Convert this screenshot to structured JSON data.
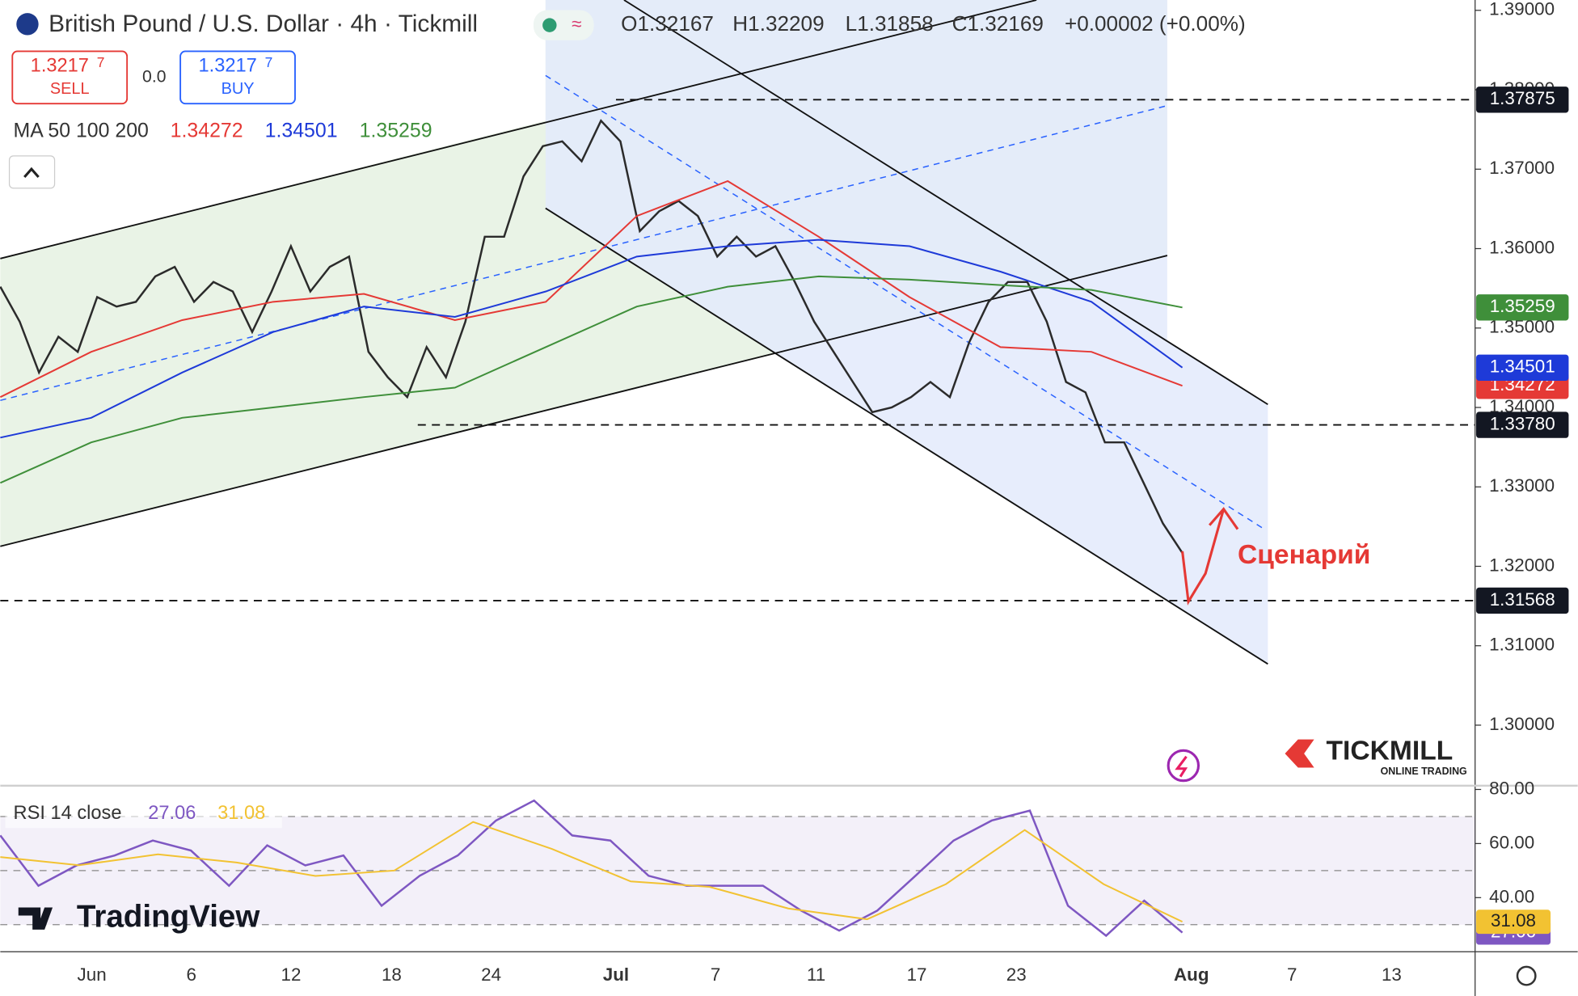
{
  "header": {
    "symbol": "British Pound / U.S. Dollar · 4h · Tickmill",
    "open": "O1.32167",
    "high": "H1.32209",
    "low": "L1.31858",
    "close": "C1.32169",
    "change": "+0.00002 (+0.00%)"
  },
  "trade": {
    "sell_price": "1.3217",
    "sell_pip": "7",
    "sell": "SELL",
    "spread": "0.0",
    "buy_price": "1.3217",
    "buy_pip": "7",
    "buy": "BUY"
  },
  "chart_data": {
    "type": "line",
    "indicator_label": "MA 50 100 200",
    "x_labels": [
      "Jun",
      "6",
      "12",
      "18",
      "24",
      "Jul",
      "7",
      "11",
      "17",
      "23",
      "Aug",
      "7",
      "13"
    ],
    "ylim": [
      1.2925,
      1.3913
    ],
    "yticks": [
      {
        "value": 1.39,
        "label": "1.39000"
      },
      {
        "value": 1.38,
        "label": "1.38000"
      },
      {
        "value": 1.37,
        "label": "1.37000"
      },
      {
        "value": 1.36,
        "label": "1.36000"
      },
      {
        "value": 1.35,
        "label": "1.35000"
      },
      {
        "value": 1.34,
        "label": "1.34000"
      },
      {
        "value": 1.33,
        "label": "1.33000"
      },
      {
        "value": 1.32,
        "label": "1.32000"
      },
      {
        "value": 1.31,
        "label": "1.31000"
      },
      {
        "value": 1.3,
        "label": "1.30000"
      }
    ],
    "series": [
      {
        "color": "#2b2b2b",
        "values": [
          1.3552,
          1.3508,
          1.3444,
          1.3489,
          1.347,
          1.3539,
          1.3527,
          1.3533,
          1.3565,
          1.3577,
          1.3533,
          1.3558,
          1.3546,
          1.3495,
          1.3546,
          1.3603,
          1.3546,
          1.3577,
          1.359,
          1.347,
          1.3438,
          1.3413,
          1.3476,
          1.3438,
          1.3508,
          1.3615,
          1.3615,
          1.3691,
          1.3729,
          1.3735,
          1.371,
          1.3761,
          1.3735,
          1.3622,
          1.3647,
          1.366,
          1.3641,
          1.359,
          1.3615,
          1.359,
          1.3603,
          1.3558,
          1.3508,
          1.347,
          1.3432,
          1.3394,
          1.34,
          1.3413,
          1.3432,
          1.3413,
          1.3482,
          1.3533,
          1.3558,
          1.3558,
          1.3508,
          1.3432,
          1.3419,
          1.3356,
          1.3356,
          1.3305,
          1.3254,
          1.32169
        ]
      },
      {
        "color": "#e53935",
        "values": [
          1.3413,
          1.347,
          1.351,
          1.3533,
          1.3543,
          1.351,
          1.3533,
          1.3641,
          1.3685,
          1.3615,
          1.3539,
          1.3476,
          1.347,
          1.34272
        ]
      },
      {
        "color": "#1e3ad8",
        "values": [
          1.3362,
          1.3387,
          1.3444,
          1.3495,
          1.3527,
          1.3514,
          1.3546,
          1.359,
          1.3603,
          1.3611,
          1.3603,
          1.3571,
          1.3533,
          1.34501
        ]
      },
      {
        "color": "#3f8f3a",
        "values": [
          1.3305,
          1.3356,
          1.3387,
          1.34,
          1.3413,
          1.3425,
          1.3476,
          1.3527,
          1.3552,
          1.3565,
          1.3561,
          1.3554,
          1.3548,
          1.35259
        ]
      }
    ],
    "levels": [
      {
        "value": 1.37875,
        "label": "1.37875"
      },
      {
        "value": 1.3378,
        "label": "1.33780"
      },
      {
        "value": 1.31568,
        "label": "1.31568"
      }
    ],
    "annotation": "Сценарий",
    "rsi": {
      "label": "RSI 14 close",
      "ylim": [
        20,
        81
      ],
      "yticks": [
        {
          "value": 80,
          "label": "80.00"
        },
        {
          "value": 60,
          "label": "60.00"
        },
        {
          "value": 40,
          "label": "40.00"
        }
      ],
      "bands": [
        70,
        50,
        30
      ],
      "series": [
        {
          "color": "#7e57c2",
          "values": [
            63.0,
            44.4,
            51.9,
            55.6,
            61.1,
            57.4,
            44.4,
            59.3,
            51.9,
            55.6,
            37.0,
            48.1,
            55.6,
            68.5,
            75.9,
            63.0,
            61.1,
            48.1,
            44.4,
            44.4,
            44.4,
            35.2,
            27.8,
            35.2,
            48.1,
            61.1,
            68.5,
            72.2,
            37.0,
            25.9,
            38.9,
            27.06
          ]
        },
        {
          "color": "#f2c232",
          "values": [
            55,
            52,
            56,
            53,
            48,
            50,
            68,
            58,
            46,
            44,
            36,
            32,
            45,
            65,
            45,
            31.08
          ]
        }
      ]
    }
  },
  "watermarks": {
    "tradingview": "TradingView",
    "tickmill": "TICKMILL",
    "tickmill_sub": "ONLINE TRADING"
  }
}
